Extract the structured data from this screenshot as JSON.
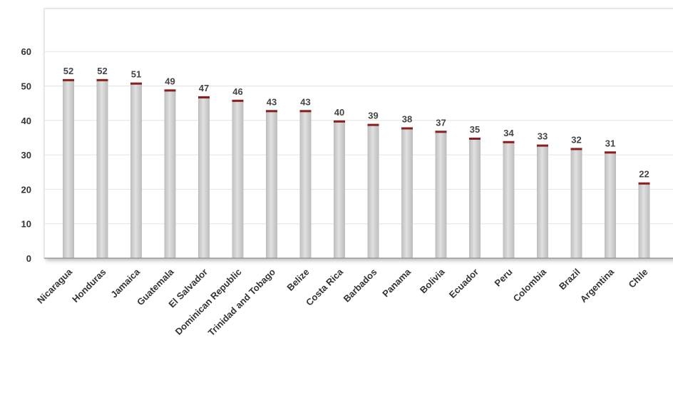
{
  "chart_data": {
    "type": "bar",
    "title": "",
    "xlabel": "",
    "ylabel": "",
    "categories": [
      "Nicaragua",
      "Honduras",
      "Jamaica",
      "Guatemala",
      "El Salvador",
      "Dominican Republic",
      "Trinidad and Tobago",
      "Belize",
      "Costa Rica",
      "Barbados",
      "Panama",
      "Bolivia",
      "Ecuador",
      "Peru",
      "Colombia",
      "Brazil",
      "Argentina",
      "Chile"
    ],
    "values": [
      52,
      52,
      51,
      49,
      47,
      46,
      43,
      43,
      40,
      39,
      38,
      37,
      35,
      34,
      33,
      32,
      31,
      22
    ],
    "ylim": [
      0,
      60
    ],
    "yticks": [
      0,
      10,
      20,
      30,
      40,
      50,
      60
    ],
    "grid": true,
    "colors": {
      "bar": "#cfcfcf",
      "bar_cap": "#8a1f1f",
      "grid": "#e3e3e3",
      "axis": "#9a9a9a"
    }
  }
}
